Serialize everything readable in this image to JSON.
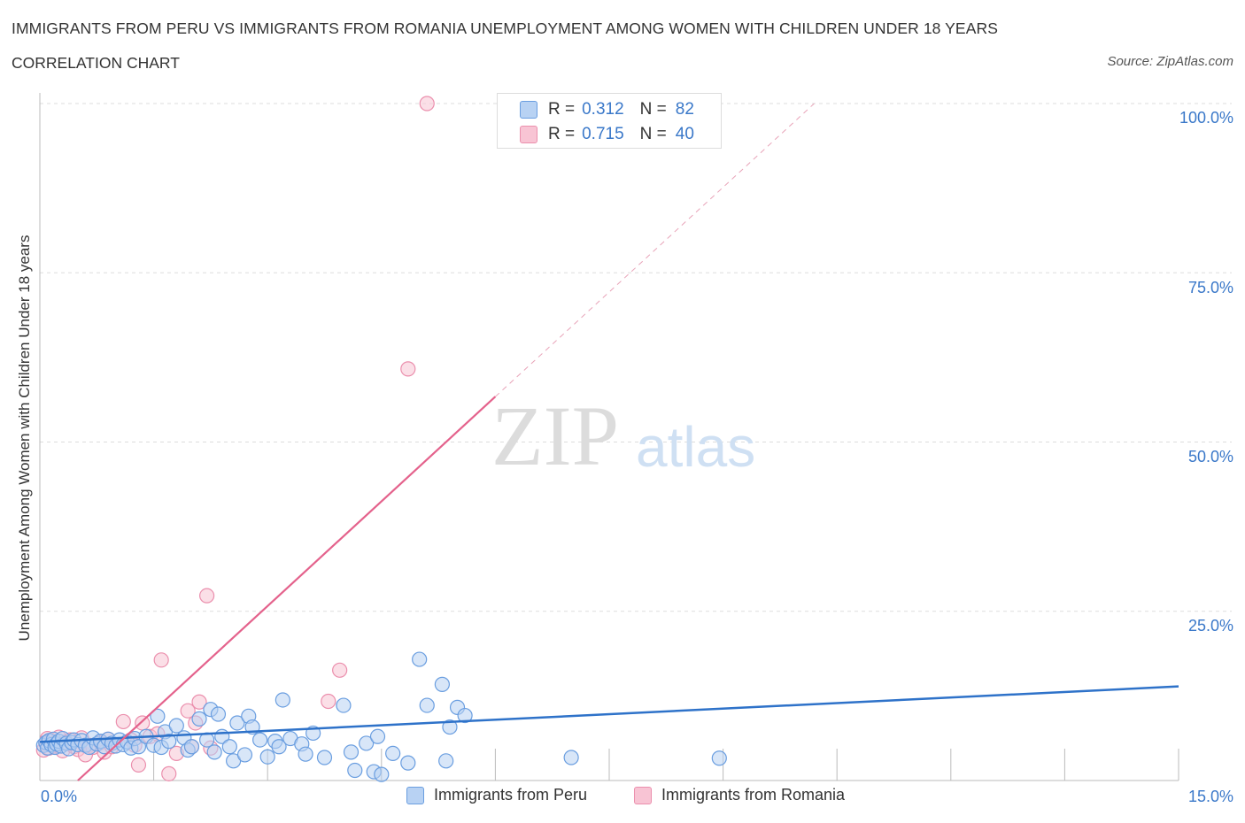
{
  "header": {
    "title": "IMMIGRANTS FROM PERU VS IMMIGRANTS FROM ROMANIA UNEMPLOYMENT AMONG WOMEN WITH CHILDREN UNDER 18 YEARS",
    "subtitle": "CORRELATION CHART",
    "source": "Source: ZipAtlas.com"
  },
  "watermark": {
    "zip": "ZIP",
    "atlas": "atlas"
  },
  "colors": {
    "peru_fill": "#b8d2f3",
    "peru_stroke": "#6a9ee0",
    "peru_line": "#2e72c9",
    "romania_fill": "#f8c4d4",
    "romania_stroke": "#eb8fad",
    "romania_line": "#e4628c",
    "axis_text": "#3a78c9",
    "grid": "#dddddd"
  },
  "stats": {
    "peru": {
      "r_label": "R =",
      "r_value": "0.312",
      "n_label": "N =",
      "n_value": "82"
    },
    "romania": {
      "r_label": "R =",
      "r_value": "0.715",
      "n_label": "N =",
      "n_value": "40"
    }
  },
  "legend": {
    "peru": "Immigrants from Peru",
    "romania": "Immigrants from Romania"
  },
  "chart_data": {
    "type": "scatter",
    "title": "IMMIGRANTS FROM PERU VS IMMIGRANTS FROM ROMANIA UNEMPLOYMENT AMONG WOMEN WITH CHILDREN UNDER 18 YEARS",
    "subtitle": "CORRELATION CHART",
    "xlabel": "",
    "ylabel": "Unemployment Among Women with Children Under 18 years",
    "xlim": [
      0,
      15
    ],
    "ylim": [
      0,
      100
    ],
    "x_tick_labels": [
      "0.0%",
      "15.0%"
    ],
    "y_tick_labels": [
      "100.0%",
      "75.0%",
      "50.0%",
      "25.0%"
    ],
    "y_ticks": [
      100,
      75,
      50,
      25
    ],
    "grid": true,
    "series": [
      {
        "name": "Immigrants from Peru",
        "r": 0.312,
        "n": 82,
        "trend": {
          "x": [
            0,
            15
          ],
          "y": [
            5.7,
            13.9
          ]
        },
        "points": [
          [
            0.05,
            5.2
          ],
          [
            0.08,
            5.6
          ],
          [
            0.1,
            4.8
          ],
          [
            0.12,
            5.9
          ],
          [
            0.15,
            5.3
          ],
          [
            0.18,
            6.1
          ],
          [
            0.2,
            4.9
          ],
          [
            0.22,
            5.4
          ],
          [
            0.25,
            5.8
          ],
          [
            0.28,
            5.1
          ],
          [
            0.3,
            6.2
          ],
          [
            0.35,
            5.5
          ],
          [
            0.38,
            4.7
          ],
          [
            0.42,
            5.6
          ],
          [
            0.45,
            6.0
          ],
          [
            0.5,
            5.3
          ],
          [
            0.55,
            5.9
          ],
          [
            0.6,
            5.2
          ],
          [
            0.65,
            4.9
          ],
          [
            0.7,
            6.3
          ],
          [
            0.75,
            5.4
          ],
          [
            0.8,
            5.8
          ],
          [
            0.85,
            5.0
          ],
          [
            0.9,
            6.1
          ],
          [
            0.95,
            5.5
          ],
          [
            1.0,
            5.1
          ],
          [
            1.05,
            6.0
          ],
          [
            1.1,
            5.3
          ],
          [
            1.15,
            5.7
          ],
          [
            1.2,
            4.8
          ],
          [
            1.25,
            6.2
          ],
          [
            1.3,
            5.0
          ],
          [
            1.4,
            6.5
          ],
          [
            1.5,
            5.2
          ],
          [
            1.55,
            9.5
          ],
          [
            1.6,
            4.9
          ],
          [
            1.65,
            7.2
          ],
          [
            1.7,
            5.8
          ],
          [
            1.8,
            8.1
          ],
          [
            1.9,
            6.3
          ],
          [
            1.95,
            4.5
          ],
          [
            2.0,
            5.0
          ],
          [
            2.1,
            9.1
          ],
          [
            2.2,
            6.0
          ],
          [
            2.25,
            10.5
          ],
          [
            2.3,
            4.2
          ],
          [
            2.35,
            9.8
          ],
          [
            2.4,
            6.5
          ],
          [
            2.5,
            5.0
          ],
          [
            2.55,
            2.9
          ],
          [
            2.6,
            8.5
          ],
          [
            2.7,
            3.8
          ],
          [
            2.75,
            9.5
          ],
          [
            2.8,
            7.9
          ],
          [
            2.9,
            6.0
          ],
          [
            3.0,
            3.5
          ],
          [
            3.1,
            5.8
          ],
          [
            3.15,
            5.0
          ],
          [
            3.2,
            11.9
          ],
          [
            3.3,
            6.2
          ],
          [
            3.45,
            5.4
          ],
          [
            3.5,
            3.9
          ],
          [
            3.6,
            7.0
          ],
          [
            3.75,
            3.4
          ],
          [
            4.0,
            11.1
          ],
          [
            4.1,
            4.2
          ],
          [
            4.15,
            1.5
          ],
          [
            4.3,
            5.5
          ],
          [
            4.4,
            1.3
          ],
          [
            4.45,
            6.5
          ],
          [
            4.5,
            0.9
          ],
          [
            4.65,
            4.0
          ],
          [
            4.85,
            2.6
          ],
          [
            5.0,
            17.9
          ],
          [
            5.1,
            11.1
          ],
          [
            5.3,
            14.2
          ],
          [
            5.4,
            7.9
          ],
          [
            5.35,
            2.9
          ],
          [
            5.5,
            10.8
          ],
          [
            5.6,
            9.6
          ],
          [
            7.0,
            3.4
          ],
          [
            8.95,
            3.3
          ]
        ]
      },
      {
        "name": "Immigrants from Romania",
        "r": 0.715,
        "n": 40,
        "trend": {
          "x": [
            0.5,
            6.0
          ],
          "y": [
            0.0,
            56.7
          ]
        },
        "trend_dashed": {
          "x": [
            6.0,
            10.2
          ],
          "y": [
            56.7,
            100
          ]
        },
        "points": [
          [
            0.05,
            4.5
          ],
          [
            0.08,
            5.5
          ],
          [
            0.1,
            6.2
          ],
          [
            0.12,
            4.8
          ],
          [
            0.15,
            5.9
          ],
          [
            0.2,
            5.1
          ],
          [
            0.25,
            6.4
          ],
          [
            0.3,
            4.4
          ],
          [
            0.35,
            5.7
          ],
          [
            0.4,
            6.0
          ],
          [
            0.45,
            5.0
          ],
          [
            0.5,
            4.6
          ],
          [
            0.55,
            6.3
          ],
          [
            0.6,
            3.8
          ],
          [
            0.65,
            5.2
          ],
          [
            0.7,
            4.9
          ],
          [
            0.8,
            5.6
          ],
          [
            0.85,
            4.2
          ],
          [
            0.9,
            6.1
          ],
          [
            0.95,
            5.0
          ],
          [
            1.1,
            8.7
          ],
          [
            1.2,
            6.0
          ],
          [
            1.25,
            5.2
          ],
          [
            1.3,
            2.3
          ],
          [
            1.35,
            8.5
          ],
          [
            1.45,
            6.5
          ],
          [
            1.55,
            6.9
          ],
          [
            1.6,
            17.8
          ],
          [
            1.7,
            1.0
          ],
          [
            1.8,
            4.0
          ],
          [
            1.95,
            10.3
          ],
          [
            2.0,
            5.0
          ],
          [
            2.05,
            8.5
          ],
          [
            2.1,
            11.6
          ],
          [
            2.2,
            27.3
          ],
          [
            2.25,
            4.8
          ],
          [
            3.8,
            11.7
          ],
          [
            3.95,
            16.3
          ],
          [
            4.85,
            60.8
          ],
          [
            5.1,
            100.0
          ]
        ]
      }
    ]
  }
}
